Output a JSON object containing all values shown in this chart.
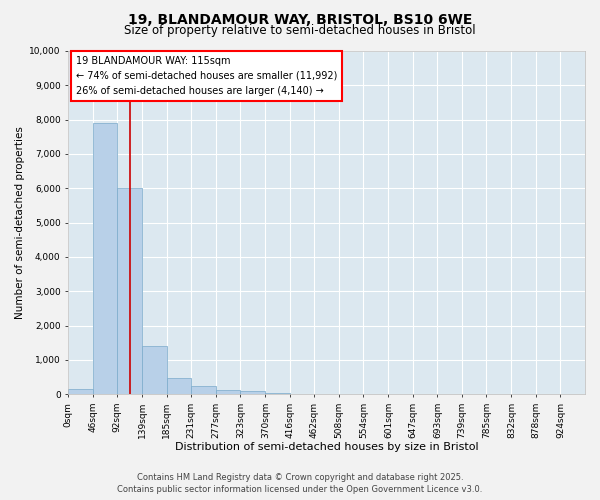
{
  "title_line1": "19, BLANDAMOUR WAY, BRISTOL, BS10 6WE",
  "title_line2": "Size of property relative to semi-detached houses in Bristol",
  "xlabel": "Distribution of semi-detached houses by size in Bristol",
  "ylabel": "Number of semi-detached properties",
  "annotation_title": "19 BLANDAMOUR WAY: 115sqm",
  "annotation_line1": "← 74% of semi-detached houses are smaller (11,992)",
  "annotation_line2": "26% of semi-detached houses are larger (4,140) →",
  "footer_line1": "Contains HM Land Registry data © Crown copyright and database right 2025.",
  "footer_line2": "Contains public sector information licensed under the Open Government Licence v3.0.",
  "bin_edges": [
    0,
    46,
    92,
    139,
    185,
    231,
    277,
    323,
    370,
    416,
    462,
    508,
    554,
    601,
    647,
    693,
    739,
    785,
    832,
    878,
    924,
    970
  ],
  "bar_heights": [
    150,
    7900,
    6000,
    1400,
    480,
    230,
    130,
    90,
    50,
    0,
    0,
    0,
    0,
    0,
    0,
    0,
    0,
    0,
    0,
    0,
    0
  ],
  "property_size": 115,
  "bar_color": "#b8d0e8",
  "bar_edge_color": "#7aaaca",
  "red_line_color": "#cc0000",
  "background_color": "#f2f2f2",
  "plot_bg_color": "#dce8f0",
  "grid_color": "#ffffff",
  "ylim": [
    0,
    10000
  ],
  "yticks": [
    0,
    1000,
    2000,
    3000,
    4000,
    5000,
    6000,
    7000,
    8000,
    9000,
    10000
  ],
  "tick_labels_x": [
    "0sqm",
    "46sqm",
    "92sqm",
    "139sqm",
    "185sqm",
    "231sqm",
    "277sqm",
    "323sqm",
    "370sqm",
    "416sqm",
    "462sqm",
    "508sqm",
    "554sqm",
    "601sqm",
    "647sqm",
    "693sqm",
    "739sqm",
    "785sqm",
    "832sqm",
    "878sqm",
    "924sqm"
  ],
  "title_fontsize": 10,
  "subtitle_fontsize": 8.5,
  "xlabel_fontsize": 8,
  "ylabel_fontsize": 7.5,
  "tick_fontsize": 6.5,
  "annotation_fontsize": 7,
  "footer_fontsize": 6
}
